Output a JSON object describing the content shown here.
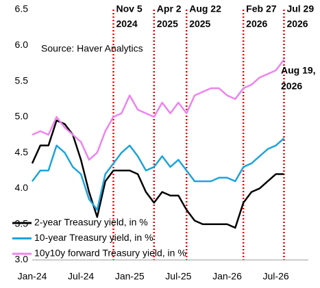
{
  "chart_data": {
    "type": "line",
    "source": "Source: Haver Analytics",
    "x": [
      "2024-01",
      "2024-02",
      "2024-03",
      "2024-04",
      "2024-05",
      "2024-06",
      "2024-07",
      "2024-08",
      "2024-09",
      "2024-10",
      "2024-11",
      "2024-12",
      "2025-01",
      "2025-02",
      "2025-03",
      "2025-04",
      "2025-05",
      "2025-06",
      "2025-07",
      "2025-08",
      "2025-09",
      "2025-10",
      "2025-11",
      "2025-12",
      "2026-01",
      "2026-02",
      "2026-03",
      "2026-04",
      "2026-05",
      "2026-06",
      "2026-07",
      "2026-08"
    ],
    "series": [
      {
        "name": "2-year Treasury yield, in %",
        "color": "#000000",
        "values": [
          4.35,
          4.6,
          4.6,
          4.95,
          4.9,
          4.75,
          4.4,
          3.95,
          3.6,
          4.1,
          4.25,
          4.25,
          4.25,
          4.2,
          3.95,
          3.8,
          3.95,
          3.9,
          3.9,
          3.7,
          3.55,
          3.5,
          3.5,
          3.5,
          3.5,
          3.45,
          3.8,
          3.95,
          4.0,
          4.1,
          4.2,
          4.2
        ]
      },
      {
        "name": "10-year Treasury yield, in %",
        "color": "#1ca3dc",
        "values": [
          4.1,
          4.25,
          4.25,
          4.6,
          4.5,
          4.3,
          4.2,
          3.85,
          3.7,
          4.2,
          4.35,
          4.5,
          4.6,
          4.45,
          4.25,
          4.3,
          4.45,
          4.3,
          4.4,
          4.25,
          4.1,
          4.1,
          4.1,
          4.15,
          4.15,
          4.1,
          4.3,
          4.35,
          4.45,
          4.55,
          4.6,
          4.7
        ]
      },
      {
        "name": "10y10y forward Treasury yield, in %",
        "color": "#ee82ee",
        "values": [
          4.75,
          4.8,
          4.75,
          5.0,
          4.85,
          4.75,
          4.65,
          4.4,
          4.5,
          4.8,
          5.0,
          5.05,
          5.3,
          5.1,
          5.05,
          5.0,
          5.2,
          5.05,
          5.2,
          5.05,
          5.3,
          5.35,
          5.4,
          5.4,
          5.3,
          5.25,
          5.4,
          5.45,
          5.55,
          5.6,
          5.65,
          5.8
        ]
      }
    ],
    "xlim": [
      "2024-01",
      "2026-11"
    ],
    "xticks": [
      {
        "value": "2024-01",
        "label": "Jan-24"
      },
      {
        "value": "2024-07",
        "label": "Jul-24"
      },
      {
        "value": "2025-01",
        "label": "Jan-25"
      },
      {
        "value": "2025-07",
        "label": "Jul-25"
      },
      {
        "value": "2026-01",
        "label": "Jan-26"
      },
      {
        "value": "2026-07",
        "label": "Jul-26"
      }
    ],
    "ylim": [
      3,
      6.5
    ],
    "yticks": [
      {
        "value": 3,
        "label": "3.0"
      },
      3.5,
      {
        "value": 4,
        "label": "4.0"
      },
      4.5,
      {
        "value": 5,
        "label": "5.0"
      },
      5.5,
      {
        "value": 6,
        "label": "6.0"
      },
      6.5
    ],
    "legend": "lower left",
    "event_color": "#e00000",
    "events": [
      {
        "x": "2024-11",
        "label": [
          "Nov 5",
          "2024"
        ]
      },
      {
        "x": "2025-04",
        "label": [
          "Apr 2",
          "2025"
        ]
      },
      {
        "x": "2025-08",
        "label": [
          "Aug 22",
          "2025"
        ]
      },
      {
        "x": "2026-03",
        "label": [
          "Feb 27",
          "2026"
        ]
      },
      {
        "x": "2026-08",
        "label": [
          "Jul 29",
          "2026"
        ]
      }
    ],
    "end_label": [
      "Aug 19,",
      "2026"
    ]
  }
}
